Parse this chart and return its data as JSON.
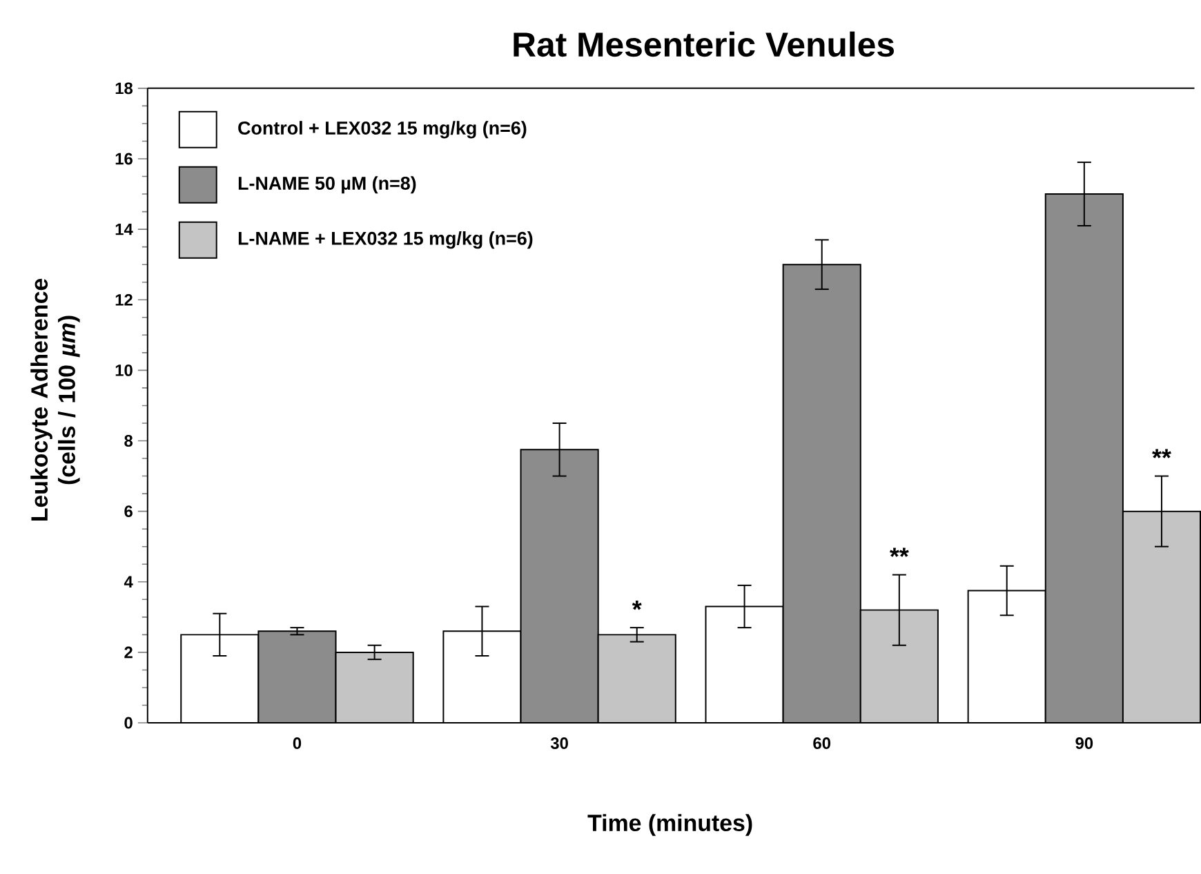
{
  "chart_data": {
    "type": "bar",
    "title": "Rat Mesenteric Venules",
    "xlabel": "Time (minutes)",
    "ylabel": "Leukocyte Adherence (cells / 100 *µm*)",
    "categories": [
      "0",
      "30",
      "60",
      "90"
    ],
    "series": [
      {
        "name": "Control + LEX032 15 mg/kg (n=6)",
        "color": "#ffffff",
        "values": [
          2.5,
          2.6,
          3.3,
          3.75
        ],
        "errors": [
          0.6,
          0.7,
          0.6,
          0.7
        ]
      },
      {
        "name": "L-NAME 50 µM (n=8)",
        "color": "#8c8c8c",
        "values": [
          2.6,
          7.75,
          13.0,
          15.0
        ],
        "errors": [
          0.1,
          0.75,
          0.7,
          0.9
        ]
      },
      {
        "name": "L-NAME + LEX032 15 mg/kg (n=6)",
        "color": "#c4c4c4",
        "values": [
          2.0,
          2.5,
          3.2,
          6.0
        ],
        "errors": [
          0.2,
          0.2,
          1.0,
          1.0
        ]
      }
    ],
    "ylim": [
      0,
      18
    ],
    "yticks": [
      0,
      2,
      4,
      6,
      8,
      10,
      12,
      14,
      16,
      18
    ],
    "legend": "top left",
    "annotations": [
      "*",
      "**",
      "**"
    ]
  }
}
